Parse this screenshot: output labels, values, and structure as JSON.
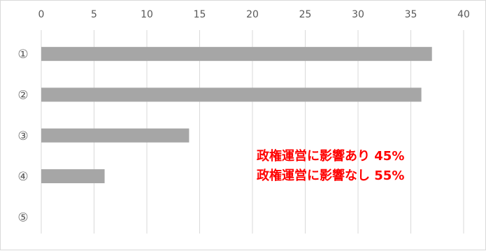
{
  "chart_data": {
    "type": "bar",
    "orientation": "horizontal",
    "categories": [
      "①",
      "②",
      "③",
      "④",
      "⑤"
    ],
    "values": [
      37,
      36,
      14,
      6,
      0
    ],
    "xlim": [
      0,
      40
    ],
    "xticks": [
      0,
      5,
      10,
      15,
      20,
      25,
      30,
      35,
      40
    ],
    "x_axis_position": "top",
    "grid": true,
    "legend": "none",
    "bar_color": "#a6a6a6",
    "grid_color": "#d9d9d9",
    "annotations": [
      {
        "text": "政権運営に影響あり  45%",
        "color": "#ff0000"
      },
      {
        "text": "政権運営に影響なし  55%",
        "color": "#ff0000"
      }
    ]
  }
}
